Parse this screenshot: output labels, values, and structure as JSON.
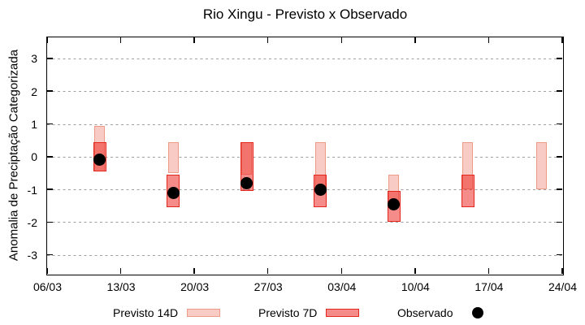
{
  "chart_data": {
    "type": "bar",
    "subtype": "category-range-bars-with-observed-points",
    "title": "Rio Xingu - Previsto x Observado",
    "xlabel": "",
    "ylabel": "Anomalia de Preciptação Categorizada",
    "x_tick_labels": [
      "06/03",
      "13/03",
      "20/03",
      "27/03",
      "03/04",
      "10/04",
      "17/04",
      "24/04"
    ],
    "x_tick_days": [
      0,
      7,
      14,
      21,
      28,
      35,
      42,
      49
    ],
    "y_ticks": [
      3,
      2,
      1,
      0,
      -1,
      -2,
      -3
    ],
    "ylim": [
      -3.6,
      3.68
    ],
    "xlim_days": [
      0,
      49
    ],
    "grid": "horizontal-dashed",
    "legend_position": "bottom",
    "series": [
      {
        "name": "Previsto 14D",
        "type": "range-bar",
        "fill": "#f8ccc5",
        "border": "#ee9a89",
        "points": [
          {
            "date": "11/03",
            "day": 5,
            "lo": -0.45,
            "hi": 0.95
          },
          {
            "date": "18/03",
            "day": 12,
            "lo": -0.5,
            "hi": 0.45
          },
          {
            "date": "25/03",
            "day": 19,
            "lo": -0.55,
            "hi": 0.45
          },
          {
            "date": "01/04",
            "day": 26,
            "lo": -1.05,
            "hi": 0.45
          },
          {
            "date": "08/04",
            "day": 33,
            "lo": -1.55,
            "hi": -0.55
          },
          {
            "date": "15/04",
            "day": 40,
            "lo": -1.0,
            "hi": 0.45
          },
          {
            "date": "22/04",
            "day": 47,
            "lo": -1.0,
            "hi": 0.45
          }
        ]
      },
      {
        "name": "Previsto 7D",
        "type": "range-bar",
        "fill": "rgba(235,35,28,0.52)",
        "border": "#e4271c",
        "points": [
          {
            "date": "11/03",
            "day": 5,
            "lo": -0.45,
            "hi": 0.45
          },
          {
            "date": "18/03",
            "day": 12,
            "lo": -1.55,
            "hi": -0.55
          },
          {
            "date": "25/03",
            "day": 19,
            "lo": -1.05,
            "hi": 0.45
          },
          {
            "date": "01/04",
            "day": 26,
            "lo": -1.55,
            "hi": -0.55
          },
          {
            "date": "08/04",
            "day": 33,
            "lo": -2.0,
            "hi": -1.05
          },
          {
            "date": "15/04",
            "day": 40,
            "lo": -1.55,
            "hi": -0.55
          }
        ]
      },
      {
        "name": "Observado",
        "type": "scatter",
        "color": "#000000",
        "points": [
          {
            "date": "11/03",
            "day": 5,
            "y": -0.1
          },
          {
            "date": "18/03",
            "day": 12,
            "y": -1.1
          },
          {
            "date": "25/03",
            "day": 19,
            "y": -0.8
          },
          {
            "date": "01/04",
            "day": 26,
            "y": -1.0
          },
          {
            "date": "08/04",
            "day": 33,
            "y": -1.45
          }
        ]
      }
    ]
  }
}
